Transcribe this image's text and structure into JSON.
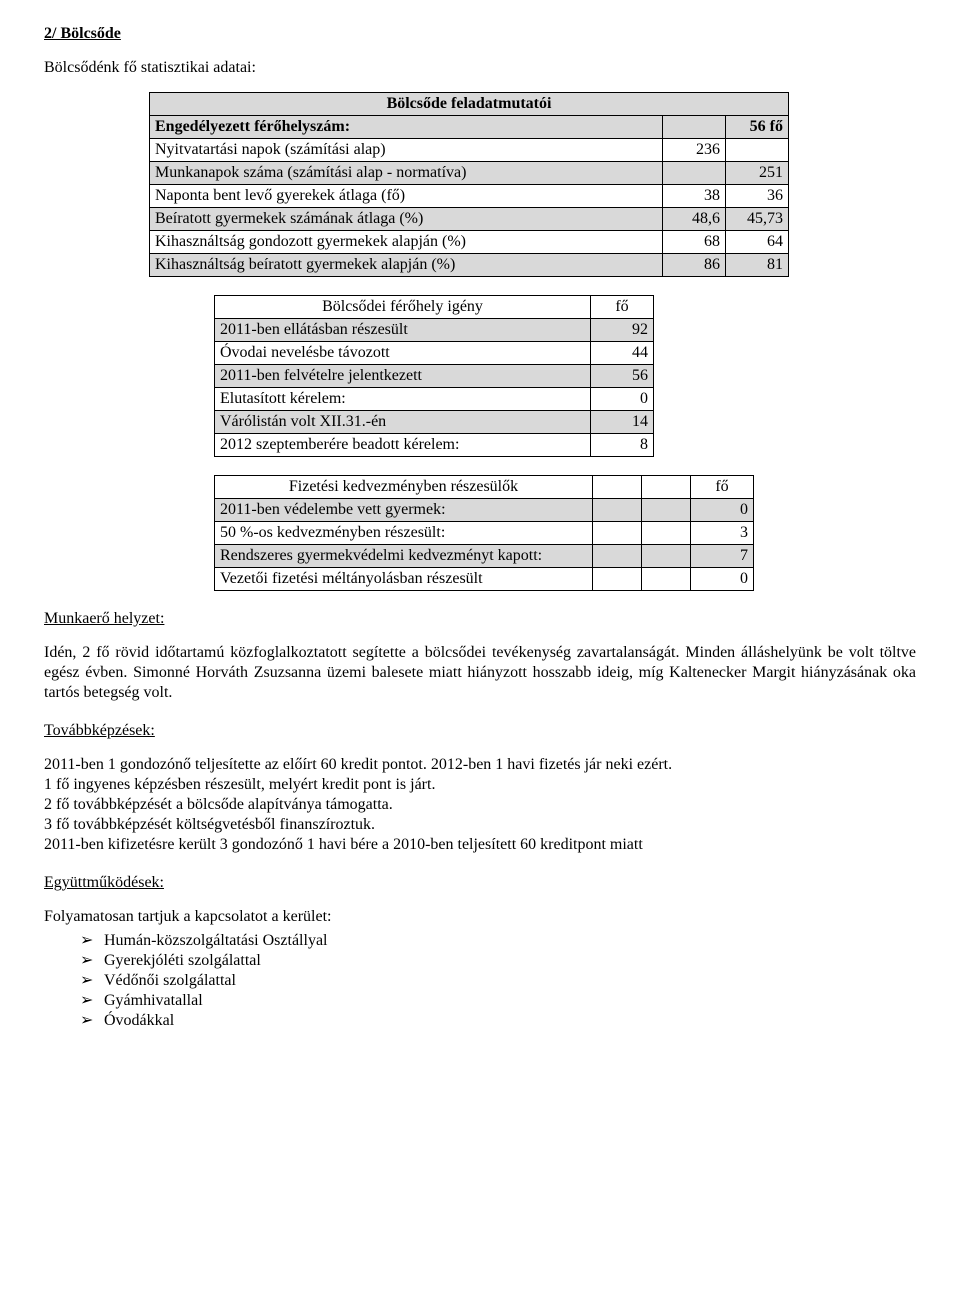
{
  "heading": "2/ Bölcsőde",
  "intro": "Bölcsődénk fő statisztikai adatai:",
  "table1": {
    "header": "Bölcsőde feladatmutatói",
    "rows": [
      {
        "label": "Engedélyezett férőhelyszám:",
        "c1": "",
        "c2": "56 fő",
        "shade": true,
        "bold": true
      },
      {
        "label": "Nyitvatartási napok (számítási alap)",
        "c1": "236",
        "c2": ""
      },
      {
        "label": "Munkanapok száma (számítási alap - normatíva)",
        "c1": "",
        "c2": "251",
        "shade": true
      },
      {
        "label": "Naponta bent levő gyerekek átlaga (fő)",
        "c1": "38",
        "c2": "36"
      },
      {
        "label": "Beíratott gyermekek számának átlaga (%)",
        "c1": "48,6",
        "c2": "45,73",
        "shade": true
      },
      {
        "label": "Kihasználtság gondozott gyermekek alapján (%)",
        "c1": "68",
        "c2": "64"
      },
      {
        "label": "Kihasználtság beíratott gyermekek alapján (%)",
        "c1": "86",
        "c2": "81",
        "shade": true
      }
    ]
  },
  "table2": {
    "header_label": "Bölcsődei férőhely igény",
    "header_unit": "fő",
    "rows": [
      {
        "label": "2011-ben ellátásban részesült",
        "val": "92",
        "shade": true
      },
      {
        "label": "Óvodai nevelésbe távozott",
        "val": "44"
      },
      {
        "label": "2011-ben felvételre jelentkezett",
        "val": "56",
        "shade": true
      },
      {
        "label": "Elutasított kérelem:",
        "val": "0"
      },
      {
        "label": "Várólistán volt XII.31.-én",
        "val": "14",
        "shade": true
      },
      {
        "label": "2012 szeptemberére beadott kérelem:",
        "val": "8"
      }
    ]
  },
  "table3": {
    "header_label": "Fizetési kedvezményben részesülők",
    "header_unit": "fő",
    "rows": [
      {
        "label": "2011-ben védelembe vett gyermek:",
        "val": "0",
        "shade": true
      },
      {
        "label": "50 %-os kedvezményben részesült:",
        "val": "3"
      },
      {
        "label": "Rendszeres gyermekvédelmi kedvezményt kapott:",
        "val": "7",
        "shade": true
      },
      {
        "label": "Vezetői fizetési méltányolásban részesült",
        "val": "0"
      }
    ]
  },
  "workforce": {
    "heading": "Munkaerő helyzet:",
    "body": "Idén, 2 fő rövid időtartamú közfoglalkoztatott segítette a bölcsődei tevékenység zavartalanságát. Minden álláshelyünk be volt töltve egész évben. Simonné Horváth Zsuzsanna üzemi balesete miatt hiányzott hosszabb ideig, míg Kaltenecker Margit hiányzásának oka tartós betegség volt."
  },
  "training": {
    "heading": "Továbbképzések:",
    "lines": [
      "2011-ben 1 gondozónő teljesítette az előírt 60 kredit pontot. 2012-ben 1 havi fizetés jár neki ezért.",
      "1 fő ingyenes képzésben részesült, melyért kredit pont is járt.",
      "2 fő továbbképzését a bölcsőde alapítványa támogatta.",
      "3 fő továbbképzését költségvetésből finanszíroztuk.",
      "2011-ben kifizetésre került 3 gondozónő 1 havi bére a 2010-ben teljesített 60 kreditpont miatt"
    ]
  },
  "coop": {
    "heading": "Együttműködések:",
    "lead": "Folyamatosan tartjuk a kapcsolatot a kerület:",
    "items": [
      "Humán-közszolgáltatási Osztállyal",
      "Gyerekjóléti szolgálattal",
      "Védőnői szolgálattal",
      "Gyámhivatallal",
      "Óvodákkal"
    ]
  }
}
